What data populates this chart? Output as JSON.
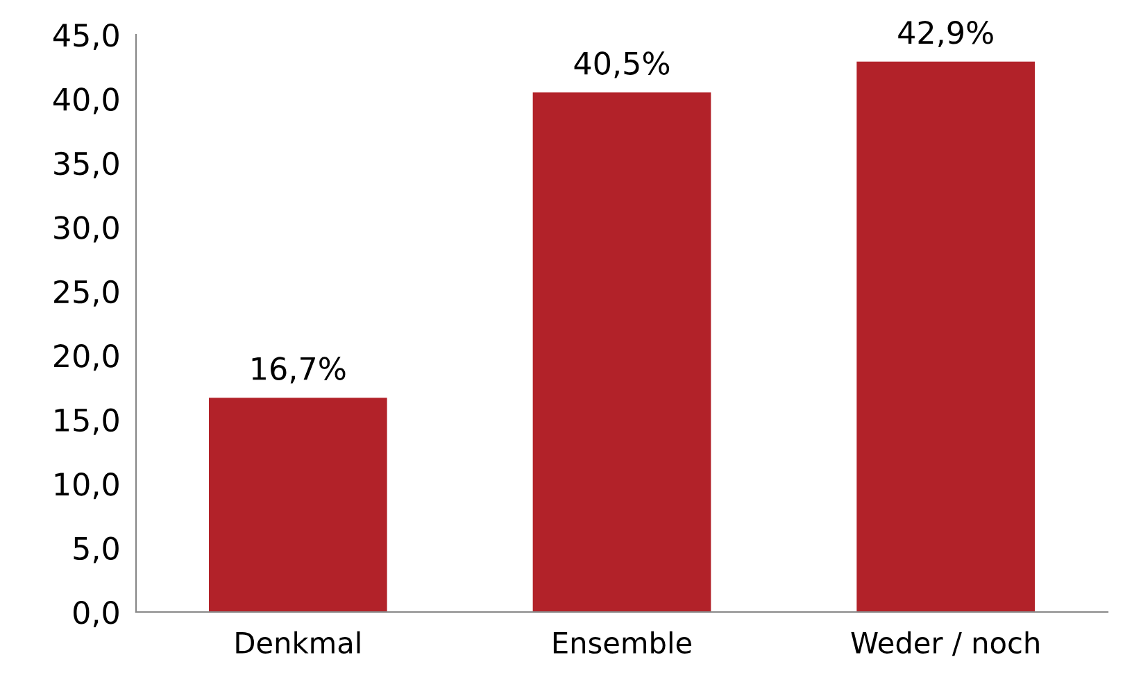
{
  "chart_data": {
    "type": "bar",
    "categories": [
      "Denkmal",
      "Ensemble",
      "Weder / noch"
    ],
    "values": [
      16.7,
      40.5,
      42.9
    ],
    "color": "#b22229",
    "value_labels": [
      "16,7%",
      "40,5%",
      "42,9%"
    ],
    "ylim": [
      0,
      45
    ],
    "yticks": [
      {
        "value": 0,
        "label": "0,0"
      },
      {
        "value": 5,
        "label": "5,0"
      },
      {
        "value": 10,
        "label": "10,0"
      },
      {
        "value": 15,
        "label": "15,0"
      },
      {
        "value": 20,
        "label": "20,0"
      },
      {
        "value": 25,
        "label": "25,0"
      },
      {
        "value": 30,
        "label": "30,0"
      },
      {
        "value": 35,
        "label": "35,0"
      },
      {
        "value": 40,
        "label": "40,0"
      },
      {
        "value": 45,
        "label": "45,0"
      }
    ],
    "grid": false,
    "legend": false
  }
}
